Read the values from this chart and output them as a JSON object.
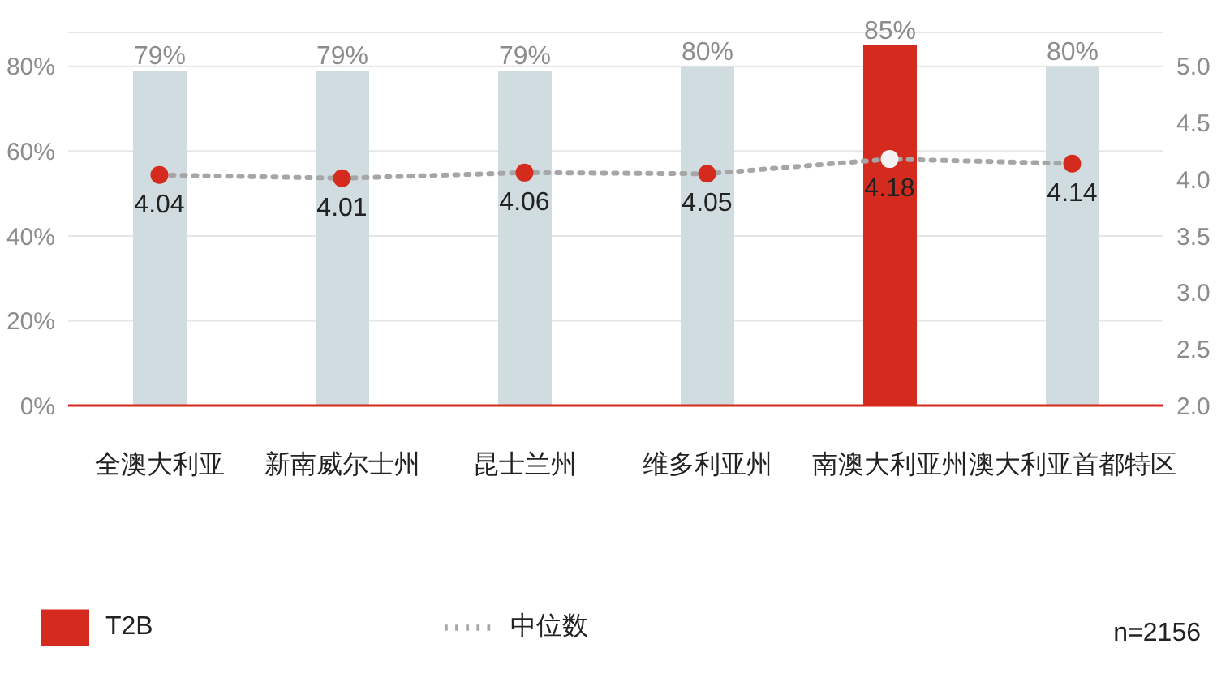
{
  "chart_data": {
    "type": "bar",
    "categories": [
      "全澳大利亚",
      "新南威尔士州",
      "昆士兰州",
      "维多利亚州",
      "南澳大利亚州",
      "澳大利亚首都特区"
    ],
    "series": [
      {
        "name": "T2B",
        "color": "#d42b1e",
        "colors": [
          "#d0dcdf",
          "#d0dcdf",
          "#d0dcdf",
          "#d0dcdf",
          "#d42b1e",
          "#d0dcdf"
        ],
        "values": [
          79,
          79,
          79,
          80,
          85,
          80
        ],
        "value_labels": [
          "79%",
          "79%",
          "79%",
          "80%",
          "85%",
          "80%"
        ]
      },
      {
        "name": "中位数",
        "type": "line",
        "axis": "y2",
        "color": "#a6a6a6",
        "colors": [
          "#d42b1e",
          "#d42b1e",
          "#d42b1e",
          "#d42b1e",
          "#f2f2f2",
          "#d42b1e"
        ],
        "values": [
          4.04,
          4.01,
          4.06,
          4.05,
          4.18,
          4.14
        ],
        "value_labels": [
          "4.04",
          "4.01",
          "4.06",
          "4.05",
          "4.18",
          "4.14"
        ],
        "line_style": "dotted",
        "marker": "circle"
      }
    ],
    "ylim": [
      0,
      88
    ],
    "yticks": [
      {
        "value": 0,
        "label": "0%"
      },
      {
        "value": 20,
        "label": "20%"
      },
      {
        "value": 40,
        "label": "40%"
      },
      {
        "value": 60,
        "label": "60%"
      },
      {
        "value": 80,
        "label": "80%"
      }
    ],
    "y2lim": [
      2,
      5.3
    ],
    "y2ticks": [
      {
        "value": 2,
        "label": "2.0"
      },
      {
        "value": 2.5,
        "label": "2.5"
      },
      {
        "value": 3,
        "label": "3.0"
      },
      {
        "value": 3.5,
        "label": "3.5"
      },
      {
        "value": 4,
        "label": "4.0"
      },
      {
        "value": 4.5,
        "label": "4.5"
      },
      {
        "value": 5,
        "label": "5.0"
      }
    ],
    "grid": "y",
    "legend": "bottom",
    "annotations": [
      "n=2156"
    ]
  }
}
